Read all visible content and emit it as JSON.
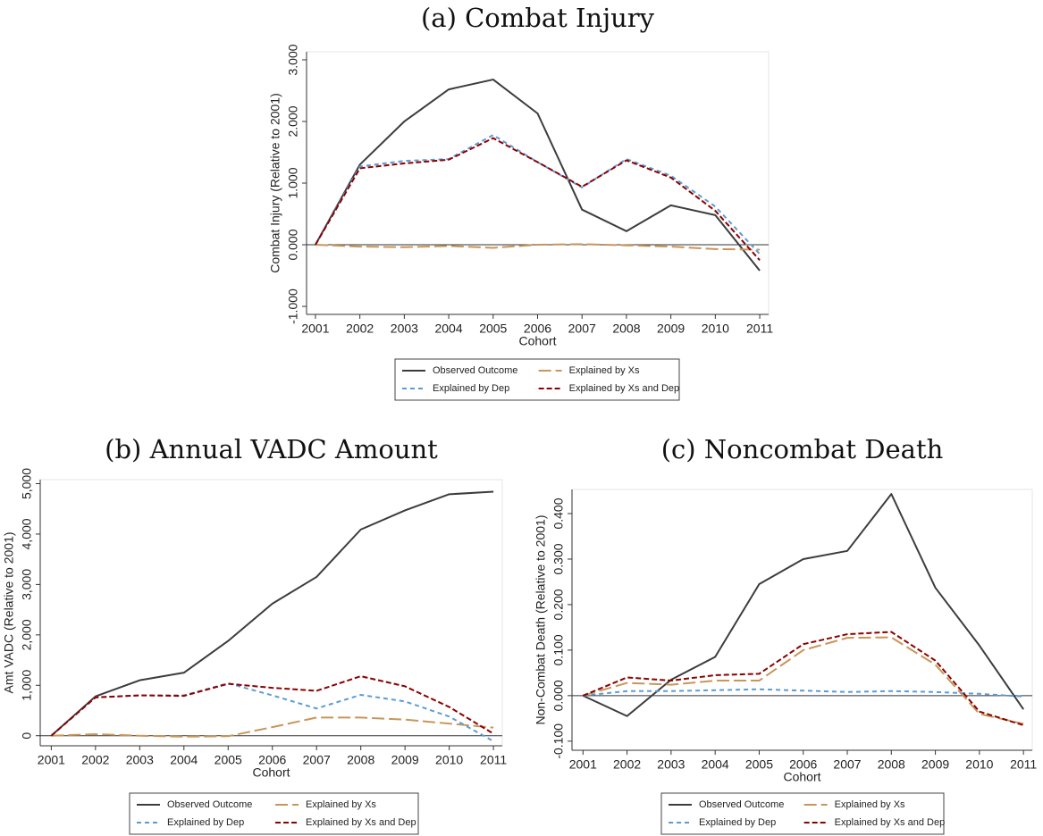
{
  "chart_data": [
    {
      "type": "line",
      "title": "(a) Combat Injury",
      "y_label": "Combat Injury (Relative to 2001)",
      "x_label": "Cohort",
      "x": [
        2001,
        2002,
        2003,
        2004,
        2005,
        2006,
        2007,
        2008,
        2009,
        2010,
        2011
      ],
      "xlim": [
        2000.8,
        2011.2
      ],
      "xticks": [
        2001,
        2002,
        2003,
        2004,
        2005,
        2006,
        2007,
        2008,
        2009,
        2010,
        2011
      ],
      "ylim": [
        -1.13,
        3.13
      ],
      "yticks": [
        {
          "value": -1,
          "label": "-1.000"
        },
        {
          "value": 0,
          "label": "0.000"
        },
        {
          "value": 1,
          "label": "1.000"
        },
        {
          "value": 2,
          "label": "2.000"
        },
        {
          "value": 3,
          "label": "3.000"
        }
      ],
      "reference_line": 0,
      "series": [
        {
          "name": "Observed Outcome",
          "color": "#3c3c3c",
          "style": "solid",
          "values": [
            0,
            1.3,
            2.0,
            2.52,
            2.68,
            2.13,
            0.57,
            0.22,
            0.64,
            0.48,
            -0.42
          ]
        },
        {
          "name": "Explained by Xs",
          "color": "#c8965a",
          "style": "longdash",
          "values": [
            0,
            -0.03,
            -0.04,
            -0.02,
            -0.05,
            0,
            0.01,
            -0.01,
            -0.03,
            -0.07,
            -0.08
          ]
        },
        {
          "name": "Explained by Dep",
          "color": "#5b9bd5",
          "style": "shortdash",
          "values": [
            0,
            1.27,
            1.36,
            1.39,
            1.78,
            1.34,
            0.93,
            1.39,
            1.12,
            0.62,
            -0.15
          ]
        },
        {
          "name": "Explained by Xs and Dep",
          "color": "#8b0000",
          "style": "dash",
          "values": [
            0,
            1.24,
            1.32,
            1.38,
            1.73,
            1.34,
            0.94,
            1.37,
            1.09,
            0.55,
            -0.25
          ]
        }
      ]
    },
    {
      "type": "line",
      "title": "(b) Annual VADC Amount",
      "y_label": "Amt VADC (Relative to 2001)",
      "x_label": "Cohort",
      "x": [
        2001,
        2002,
        2003,
        2004,
        2005,
        2006,
        2007,
        2008,
        2009,
        2010,
        2011
      ],
      "xlim": [
        2000.75,
        2011.2
      ],
      "xticks": [
        2001,
        2002,
        2003,
        2004,
        2005,
        2006,
        2007,
        2008,
        2009,
        2010,
        2011
      ],
      "ylim": [
        -200,
        5080
      ],
      "yticks": [
        0,
        {
          "value": 1000,
          "label": "1,000"
        },
        {
          "value": 2000,
          "label": "2,000"
        },
        {
          "value": 3000,
          "label": "3,000"
        },
        {
          "value": 4000,
          "label": "4,000"
        },
        {
          "value": 5000,
          "label": "5,000"
        }
      ],
      "reference_line": 0,
      "series": [
        {
          "name": "Observed Outcome",
          "color": "#3c3c3c",
          "style": "solid",
          "values": [
            0,
            780,
            1100,
            1250,
            1880,
            2620,
            3150,
            4090,
            4470,
            4790,
            4840
          ]
        },
        {
          "name": "Explained by Xs",
          "color": "#c8965a",
          "style": "longdash",
          "values": [
            0,
            30,
            0,
            -20,
            -10,
            170,
            360,
            360,
            320,
            240,
            160
          ]
        },
        {
          "name": "Explained by Dep",
          "color": "#5b9bd5",
          "style": "shortdash",
          "values": [
            0,
            760,
            800,
            800,
            1040,
            800,
            540,
            810,
            680,
            380,
            -110
          ]
        },
        {
          "name": "Explained by Xs and Dep",
          "color": "#8b0000",
          "style": "dash",
          "values": [
            0,
            760,
            800,
            790,
            1030,
            950,
            890,
            1180,
            980,
            570,
            40
          ]
        }
      ]
    },
    {
      "type": "line",
      "title": "(c) Noncombat Death",
      "y_label": "Non-Combat Death (Relative to 2001)",
      "x_label": "Cohort",
      "x": [
        2001,
        2002,
        2003,
        2004,
        2005,
        2006,
        2007,
        2008,
        2009,
        2010,
        2011
      ],
      "xlim": [
        2000.75,
        2011.2
      ],
      "xticks": [
        2001,
        2002,
        2003,
        2004,
        2005,
        2006,
        2007,
        2008,
        2009,
        2010,
        2011
      ],
      "ylim": [
        -0.12,
        0.453
      ],
      "yticks": [
        {
          "value": -0.1,
          "label": "-0.100"
        },
        {
          "value": 0,
          "label": "0.000"
        },
        {
          "value": 0.1,
          "label": "0.100"
        },
        {
          "value": 0.2,
          "label": "0.200"
        },
        {
          "value": 0.3,
          "label": "0.300"
        },
        {
          "value": 0.4,
          "label": "0.400"
        }
      ],
      "reference_line": 0,
      "series": [
        {
          "name": "Observed Outcome",
          "color": "#3c3c3c",
          "style": "solid",
          "values": [
            0,
            -0.045,
            0.035,
            0.085,
            0.245,
            0.3,
            0.318,
            0.443,
            0.237,
            0.11,
            -0.03
          ]
        },
        {
          "name": "Explained by Xs",
          "color": "#c8965a",
          "style": "longdash",
          "values": [
            0,
            0.028,
            0.024,
            0.033,
            0.033,
            0.1,
            0.127,
            0.128,
            0.068,
            -0.04,
            -0.062
          ]
        },
        {
          "name": "Explained by Dep",
          "color": "#5b9bd5",
          "style": "shortdash",
          "values": [
            0,
            0.01,
            0.01,
            0.012,
            0.014,
            0.011,
            0.008,
            0.01,
            0.008,
            0.004,
            -0.002
          ]
        },
        {
          "name": "Explained by Xs and Dep",
          "color": "#8b0000",
          "style": "dash",
          "values": [
            0,
            0.04,
            0.033,
            0.045,
            0.048,
            0.113,
            0.135,
            0.14,
            0.077,
            -0.035,
            -0.065
          ]
        }
      ]
    }
  ]
}
